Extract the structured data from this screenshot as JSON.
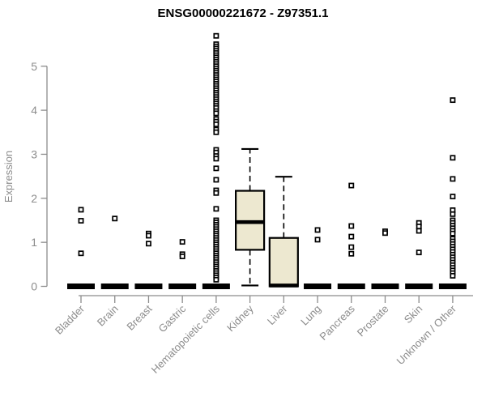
{
  "chart_data": {
    "type": "boxplot",
    "title": "ENSG00000221672 - Z97351.1",
    "ylabel": "Expression",
    "xlabel": "",
    "ylim": [
      0,
      5.8
    ],
    "yticks": [
      0,
      1,
      2,
      3,
      4,
      5
    ],
    "grid": false,
    "legend": "none",
    "categories": [
      "Bladder",
      "Brain",
      "Breast",
      "Gastric",
      "Hematopoietic cells",
      "Kidney",
      "Liver",
      "Lung",
      "Pancreas",
      "Prostate",
      "Skin",
      "Unknown / Other"
    ],
    "series": [
      {
        "name": "Bladder",
        "low": 0,
        "q1": 0,
        "median": 0,
        "q3": 0,
        "high": 0,
        "outliers": [
          1.74,
          1.49,
          0.75
        ]
      },
      {
        "name": "Brain",
        "low": 0,
        "q1": 0,
        "median": 0,
        "q3": 0,
        "high": 0,
        "outliers": [
          1.54
        ]
      },
      {
        "name": "Breast",
        "low": 0,
        "q1": 0,
        "median": 0,
        "q3": 0,
        "high": 0,
        "outliers": [
          1.2,
          1.15,
          0.97
        ]
      },
      {
        "name": "Gastric",
        "low": 0,
        "q1": 0,
        "median": 0,
        "q3": 0,
        "high": 0,
        "outliers": [
          1.01,
          0.73,
          0.68
        ]
      },
      {
        "name": "Hematopoietic cells",
        "low": 0,
        "q1": 0,
        "median": 0,
        "q3": 0,
        "high": 0,
        "outliers": [
          5.69,
          5.5,
          5.45,
          5.4,
          5.35,
          5.3,
          5.25,
          5.2,
          5.15,
          5.1,
          5.05,
          5.0,
          4.95,
          4.9,
          4.85,
          4.8,
          4.75,
          4.7,
          4.65,
          4.6,
          4.55,
          4.5,
          4.45,
          4.4,
          4.35,
          4.3,
          4.25,
          4.2,
          4.15,
          4.1,
          4.05,
          3.98,
          3.93,
          3.8,
          3.74,
          3.68,
          3.56,
          3.5,
          3.1,
          3.04,
          2.96,
          2.9,
          2.68,
          2.42,
          2.18,
          2.12,
          1.76,
          1.5,
          1.45,
          1.4,
          1.35,
          1.3,
          1.25,
          1.2,
          1.15,
          1.1,
          1.05,
          1.0,
          0.95,
          0.9,
          0.85,
          0.8,
          0.75,
          0.7,
          0.65,
          0.6,
          0.55,
          0.5,
          0.45,
          0.4,
          0.35,
          0.3,
          0.25,
          0.2,
          0.15
        ]
      },
      {
        "name": "Kidney",
        "low": 0.02,
        "q1": 0.83,
        "median": 1.46,
        "q3": 2.17,
        "high": 3.12,
        "outliers": []
      },
      {
        "name": "Liver",
        "low": 0,
        "q1": 0,
        "median": 0.02,
        "q3": 1.1,
        "high": 2.49,
        "outliers": []
      },
      {
        "name": "Lung",
        "low": 0,
        "q1": 0,
        "median": 0,
        "q3": 0,
        "high": 0,
        "outliers": [
          1.28,
          1.06
        ]
      },
      {
        "name": "Pancreas",
        "low": 0,
        "q1": 0,
        "median": 0,
        "q3": 0,
        "high": 0,
        "outliers": [
          2.29,
          1.37,
          1.13,
          0.89,
          0.74
        ]
      },
      {
        "name": "Prostate",
        "low": 0,
        "q1": 0,
        "median": 0,
        "q3": 0,
        "high": 0,
        "outliers": [
          1.25,
          1.21
        ]
      },
      {
        "name": "Skin",
        "low": 0,
        "q1": 0,
        "median": 0,
        "q3": 0,
        "high": 0,
        "outliers": [
          1.44,
          1.36,
          1.26,
          0.77
        ]
      },
      {
        "name": "Unknown / Other",
        "low": 0,
        "q1": 0,
        "median": 0,
        "q3": 0,
        "high": 0,
        "outliers": [
          4.23,
          2.92,
          2.44,
          2.04,
          1.73,
          1.64,
          1.5,
          1.44,
          1.38,
          1.32,
          1.26,
          1.2,
          1.08,
          1.02,
          0.96,
          0.9,
          0.84,
          0.78,
          0.72,
          0.66,
          0.6,
          0.54,
          0.48,
          0.42,
          0.36,
          0.3,
          0.24
        ]
      }
    ]
  },
  "colors": {
    "box_fill": "#EDE8D0",
    "box_stroke": "#000000",
    "median": "#000000",
    "outlier_stroke": "#000000",
    "outlier_fill": "#FFFFFF",
    "axis": "#8C8C8C",
    "tick_label": "#8C8C8C",
    "title": "#000000",
    "background": "#FFFFFF"
  }
}
